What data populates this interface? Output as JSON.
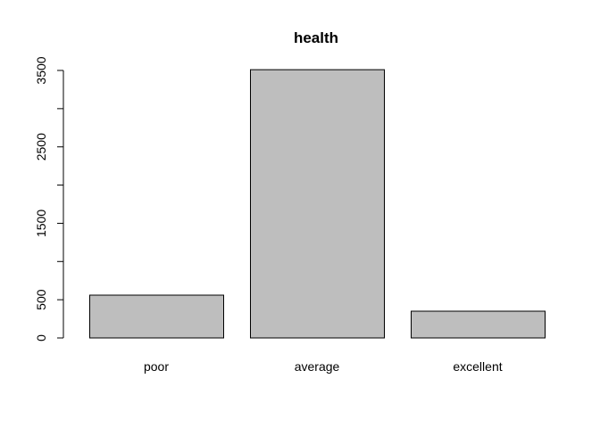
{
  "chart_data": {
    "type": "bar",
    "title": "health",
    "xlabel": "",
    "ylabel": "",
    "categories": [
      "poor",
      "average",
      "excellent"
    ],
    "values": [
      560,
      3510,
      350
    ],
    "ylim": [
      0,
      3500
    ],
    "y_ticks": [
      0,
      500,
      1000,
      1500,
      2000,
      2500,
      3000,
      3500
    ],
    "y_tick_labels": [
      "0",
      "500",
      "",
      "1500",
      "",
      "2500",
      "",
      "3500"
    ],
    "bar_color": "#bebebe",
    "grid": false,
    "legend": "none"
  }
}
